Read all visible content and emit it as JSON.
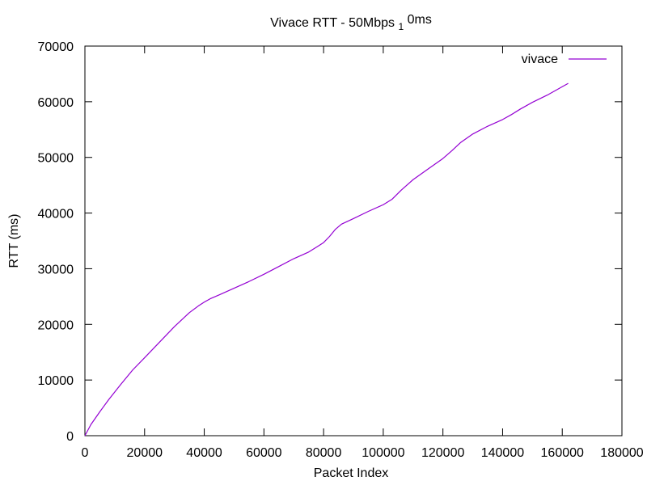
{
  "chart_data": {
    "type": "line",
    "title": {
      "main": "Vivace RTT - 50Mbps ",
      "sub": "1",
      "tail": "0ms"
    },
    "xlabel": "Packet Index",
    "ylabel": "RTT (ms)",
    "xlim": [
      0,
      180000
    ],
    "ylim": [
      0,
      70000
    ],
    "x_ticks": [
      0,
      20000,
      40000,
      60000,
      80000,
      100000,
      120000,
      140000,
      160000,
      180000
    ],
    "y_ticks": [
      0,
      10000,
      20000,
      30000,
      40000,
      50000,
      60000,
      70000
    ],
    "x_tick_labels": [
      "0",
      "20000",
      "40000",
      "60000",
      "80000",
      "100000",
      "120000",
      "140000",
      "160000",
      "180000"
    ],
    "y_tick_labels": [
      "0",
      "10000",
      "20000",
      "30000",
      "40000",
      "50000",
      "60000",
      "70000"
    ],
    "grid": false,
    "legend": {
      "position": "top-right"
    },
    "series": [
      {
        "name": "vivace",
        "color": "#9400d3",
        "x": [
          0,
          2000,
          5000,
          8000,
          12000,
          16000,
          20000,
          25000,
          30000,
          35000,
          38000,
          40000,
          42000,
          45000,
          50000,
          55000,
          60000,
          65000,
          70000,
          75000,
          78000,
          80000,
          82000,
          84000,
          86000,
          90000,
          95000,
          100000,
          103000,
          106000,
          110000,
          115000,
          120000,
          123000,
          126000,
          130000,
          135000,
          140000,
          143000,
          146000,
          150000,
          155000,
          160000,
          162000
        ],
        "y": [
          0,
          2000,
          4300,
          6500,
          9200,
          11800,
          14000,
          16800,
          19600,
          22100,
          23300,
          24000,
          24600,
          25300,
          26500,
          27700,
          29000,
          30400,
          31800,
          33000,
          34000,
          34700,
          35800,
          37100,
          38000,
          39000,
          40300,
          41500,
          42500,
          44100,
          46000,
          47900,
          49800,
          51200,
          52700,
          54200,
          55600,
          56800,
          57700,
          58700,
          59900,
          61200,
          62700,
          63300
        ]
      }
    ]
  }
}
